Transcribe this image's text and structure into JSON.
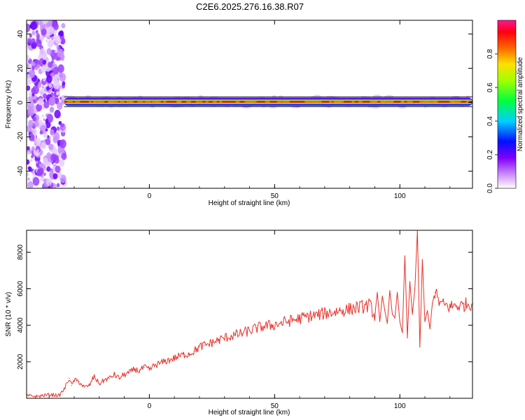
{
  "title": "C2E6.2025.276.16.38.R07",
  "colors": {
    "snr_line": "#e8312a",
    "signal_core": "#e0002a",
    "noise": "#7a3cff"
  },
  "chart_data": [
    {
      "type": "heatmap",
      "title": "C2E6.2025.276.16.38.R07",
      "xlabel": "Height of straight line (km)",
      "ylabel": "Frequency (Hz)",
      "xlim": [
        -49,
        129
      ],
      "ylim": [
        -50,
        48
      ],
      "x_ticks": [
        0,
        50,
        100
      ],
      "x_tick_labels": [
        "0",
        "50",
        "100"
      ],
      "y_ticks": [
        -40,
        -20,
        0,
        20,
        40
      ],
      "y_tick_labels": [
        "-40",
        "-20",
        "0",
        "20",
        "40"
      ],
      "colorbar": {
        "label": "Normalized spectral amplitude",
        "range": [
          0,
          1
        ],
        "ticks": [
          0,
          0.2,
          0.4,
          0.6,
          0.8
        ],
        "tick_labels": [
          "0.0",
          "0.2",
          "0.4",
          "0.6",
          "0.8"
        ],
        "colors": [
          "#ffffff",
          "#c060ff",
          "#7a00ff",
          "#0000ff",
          "#00c8ff",
          "#00ff80",
          "#80ff00",
          "#ffff00",
          "#ff8000",
          "#ff0000",
          "#ff1493"
        ]
      },
      "signal_band": {
        "frequency": 0.5,
        "x_start": -34,
        "x_end": 129,
        "description_points": [
          {
            "x": -34,
            "amp": 0.3
          },
          {
            "x": -20,
            "amp": 0.6
          },
          {
            "x": 0,
            "amp": 0.9
          },
          {
            "x": 50,
            "amp": 1.0
          },
          {
            "x": 92,
            "amp": 0.8
          },
          {
            "x": 110,
            "amp": 0.6
          },
          {
            "x": 129,
            "amp": 1.0
          }
        ]
      },
      "noise_region": {
        "x_start": -49,
        "x_end": -34
      }
    },
    {
      "type": "line",
      "xlabel": "Height of straight line (km)",
      "ylabel": "SNR (10 * v/v)",
      "xlim": [
        -49,
        129
      ],
      "ylim": [
        0,
        9200
      ],
      "x_ticks": [
        0,
        50,
        100
      ],
      "x_tick_labels": [
        "0",
        "50",
        "100"
      ],
      "y_ticks": [
        2000,
        4000,
        6000,
        8000
      ],
      "y_tick_labels": [
        "2000",
        "4000",
        "6000",
        "8000"
      ],
      "series": [
        {
          "x": [
            -49,
            -45,
            -40,
            -36,
            -34,
            -32,
            -31,
            -30,
            -28,
            -26,
            -24,
            -22,
            -20,
            -18,
            -16,
            -14,
            -12,
            -10,
            -8,
            -6,
            -4,
            -2,
            0,
            2,
            4,
            6,
            8,
            10,
            12,
            14,
            16,
            18,
            20,
            22,
            25,
            28,
            31,
            34,
            37,
            40,
            43,
            46,
            49,
            52,
            55,
            58,
            61,
            64,
            67,
            70,
            73,
            76,
            79,
            82,
            85,
            88,
            90,
            91,
            92,
            93,
            94,
            95,
            96,
            97,
            98,
            99,
            100,
            101,
            102,
            103,
            104,
            105,
            106,
            107,
            108,
            109,
            110,
            111,
            112,
            113,
            114,
            116,
            118,
            120,
            122,
            124,
            126,
            129
          ],
          "y": [
            150,
            100,
            200,
            150,
            500,
            1100,
            700,
            1000,
            900,
            600,
            700,
            1200,
            800,
            1000,
            1100,
            1300,
            1100,
            1300,
            1400,
            1600,
            1500,
            1700,
            1550,
            1800,
            1900,
            2000,
            2100,
            2200,
            2300,
            2400,
            2450,
            2600,
            2800,
            2900,
            3050,
            3200,
            3350,
            3450,
            3550,
            3700,
            3850,
            3950,
            4000,
            4100,
            4200,
            4300,
            4400,
            4500,
            4550,
            4650,
            4700,
            4800,
            4850,
            4950,
            5000,
            5100,
            4500,
            5800,
            4200,
            5600,
            4800,
            4100,
            5900,
            4600,
            4400,
            5800,
            4200,
            3600,
            7800,
            3300,
            6400,
            4600,
            6000,
            9200,
            2800,
            7600,
            4200,
            4800,
            3800,
            5200,
            5800,
            5200,
            5100,
            5000,
            5100,
            5050,
            5150,
            5200
          ]
        }
      ]
    }
  ]
}
